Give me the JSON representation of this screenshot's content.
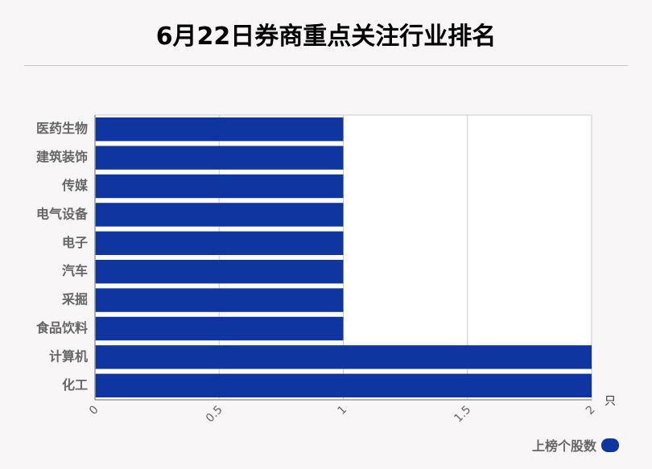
{
  "chart_data": {
    "type": "bar",
    "orientation": "horizontal",
    "title": "6月22日券商重点关注行业排名",
    "categories": [
      "医药生物",
      "建筑装饰",
      "传媒",
      "电气设备",
      "电子",
      "汽车",
      "采掘",
      "食品饮料",
      "计算机",
      "化工"
    ],
    "series": [
      {
        "name": "上榜个股数",
        "values": [
          1,
          1,
          1,
          1,
          1,
          1,
          1,
          1,
          2,
          2
        ]
      }
    ],
    "xlabel": "只",
    "xlim": [
      0,
      2
    ],
    "xticks": [
      "0",
      "0.5",
      "1",
      "1.5",
      "2"
    ],
    "grid": true,
    "legend_position": "bottom-right",
    "colors": {
      "bar": "#0f36a0",
      "grid": "#cccccc",
      "axis": "#999999"
    }
  }
}
